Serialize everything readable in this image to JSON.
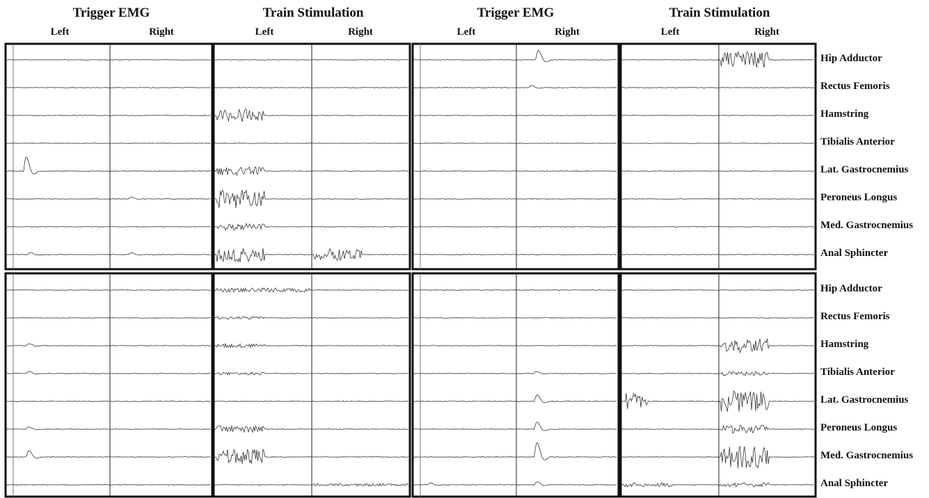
{
  "headers": {
    "group1_title": "Trigger EMG",
    "group2_title": "Train Stimulation",
    "group3_title": "Trigger EMG",
    "group4_title": "Train Stimulation",
    "left": "Left",
    "right": "Right"
  },
  "muscles_top": [
    "Hip Adductor",
    "Rectus Femoris",
    "Hamstring",
    "Tibialis Anterior",
    "Lat. Gastrocnemius",
    "Peroneus Longus",
    "Med. Gastrocnemius",
    "Anal Sphincter"
  ],
  "muscles_bottom": [
    "Hip Adductor",
    "Rectus Femoris",
    "Hamstring",
    "Tibialis Anterior",
    "Lat. Gastrocnemius",
    "Peroneus Longus",
    "Med. Gastrocnemius",
    "Anal Sphincter"
  ],
  "trace_line_color": "#333333"
}
